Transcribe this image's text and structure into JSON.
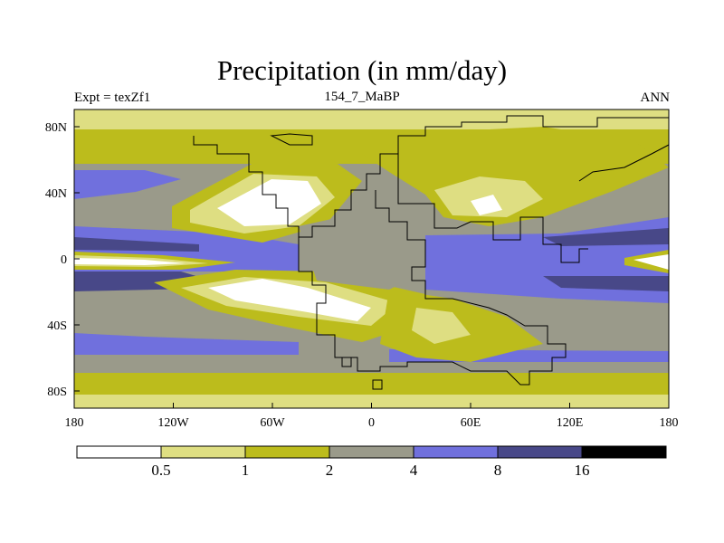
{
  "title": "Precipitation (in mm/day)",
  "subtitle_left": "Expt = texZf1",
  "subtitle_center": "154_7_MaBP",
  "subtitle_right": "ANN",
  "y_ticks": [
    "80N",
    "40N",
    "0",
    "40S",
    "80S"
  ],
  "x_ticks": [
    "180",
    "120W",
    "60W",
    "0",
    "60E",
    "120E",
    "180"
  ],
  "colorbar": {
    "labels": [
      "0.5",
      "1",
      "2",
      "4",
      "8",
      "16"
    ],
    "colors": [
      "#ffffff",
      "#dede82",
      "#bcbc1c",
      "#9a9a8a",
      "#7070dd",
      "#484888",
      "#000000"
    ]
  },
  "colors": {
    "ocean_mid": "#9a9a8a",
    "subtropic": "#bcbc1c",
    "dry_light": "#dede82",
    "very_dry": "#ffffff",
    "wet": "#7070dd",
    "very_wet": "#484888",
    "coast": "#000000"
  }
}
